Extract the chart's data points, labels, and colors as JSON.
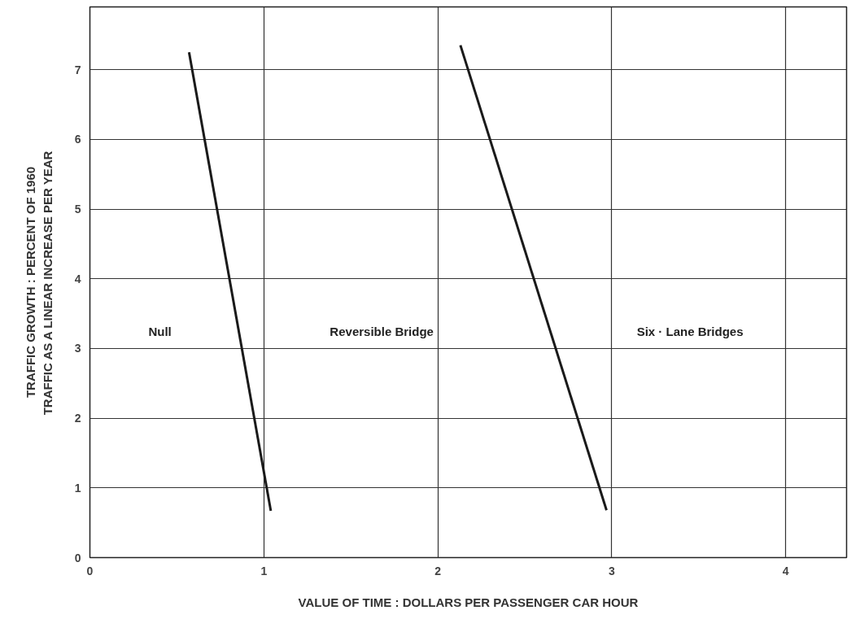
{
  "chart_data": {
    "type": "line",
    "xlabel": "VALUE OF TIME : DOLLARS PER PASSENGER CAR HOUR",
    "ylabel": "TRAFFIC GROWTH : PERCENT OF 1960\nTRAFFIC AS A LINEAR INCREASE PER YEAR",
    "series": [
      {
        "color": "#1a1a1a",
        "x": [
          0.57,
          1.04
        ],
        "values": [
          7.25,
          0.67
        ]
      },
      {
        "color": "#1a1a1a",
        "x": [
          2.13,
          2.97
        ],
        "values": [
          7.35,
          0.68
        ]
      }
    ],
    "annotations": [
      "Null",
      "Reversible Bridge",
      "Six · Lane Bridges"
    ],
    "xlim": [
      0,
      4.35
    ],
    "ylim": [
      0,
      7.9
    ],
    "xticks": [
      0,
      1,
      2,
      3,
      4
    ],
    "yticks": [
      0,
      1,
      2,
      3,
      4,
      5,
      6,
      7
    ],
    "grid": true,
    "line_style": "solid"
  }
}
